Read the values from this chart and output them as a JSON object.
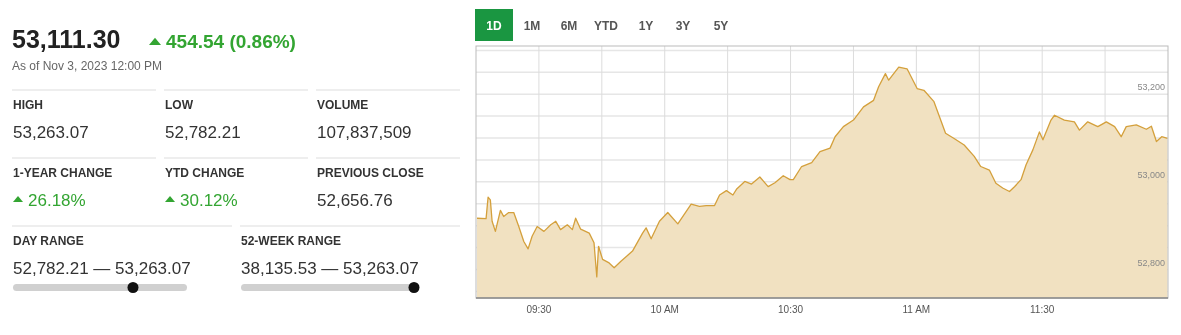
{
  "chart_data": [
    {
      "type": "other",
      "title": "53,111.30",
      "subtitle": "As of Nov 3, 2023 12:00 PM",
      "annotations": [
        "454.54 (0.86%)",
        "HIGH",
        "53,263.07",
        "LOW",
        "52,782.21",
        "VOLUME",
        "107,837,509",
        "1-YEAR CHANGE",
        "26.18%",
        "YTD CHANGE",
        "30.12%",
        "PREVIOUS CLOSE",
        "52,656.76",
        "DAY RANGE",
        "52,782.21 — 53,263.07",
        "52-WEEK RANGE",
        "38,135.53 — 53,263.07"
      ]
    },
    {
      "type": "area",
      "annotations": [
        "1D",
        "1M",
        "6M",
        "YTD",
        "1Y",
        "3Y",
        "5Y"
      ],
      "series": [
        {
          "color": "#d4a03c",
          "x": [
            9.254,
            9.29,
            9.298,
            9.307,
            9.314,
            9.327,
            9.347,
            9.36,
            9.38,
            9.4,
            9.42,
            9.44,
            9.457,
            9.473,
            9.493,
            9.52,
            9.547,
            9.567,
            9.586,
            9.613,
            9.633,
            9.646,
            9.666,
            9.7,
            9.719,
            9.73,
            9.737,
            9.753,
            9.779,
            9.799,
            9.826,
            9.872,
            9.912,
            9.926,
            9.946,
            9.979,
            10.012,
            10.052,
            10.105,
            10.138,
            10.165,
            10.198,
            10.218,
            10.245,
            10.271,
            10.285,
            10.318,
            10.345,
            10.378,
            10.411,
            10.438,
            10.471,
            10.498,
            10.511,
            10.544,
            10.584,
            10.617,
            10.657,
            10.677,
            10.71,
            10.75,
            10.79,
            10.83,
            10.85,
            10.877,
            10.89,
            10.93,
            10.963,
            11.003,
            11.03,
            11.07,
            11.116,
            11.15,
            11.19,
            11.23,
            11.256,
            11.29,
            11.316,
            11.343,
            11.37,
            11.39,
            11.416,
            11.436,
            11.463,
            11.489,
            11.503,
            11.535,
            11.549,
            11.588,
            11.628,
            11.648,
            11.681,
            11.721,
            11.755,
            11.788,
            11.814,
            11.834,
            11.874,
            11.914,
            11.934,
            11.954,
            11.975,
            11.998
          ],
          "values": [
            52917,
            52916,
            52965,
            52959,
            52910,
            52887,
            52935,
            52921,
            52930,
            52930,
            52898,
            52864,
            52847,
            52876,
            52898,
            52887,
            52902,
            52910,
            52891,
            52902,
            52891,
            52917,
            52892,
            52883,
            52861,
            52783,
            52853,
            52823,
            52815,
            52804,
            52819,
            52842,
            52883,
            52895,
            52870,
            52910,
            52930,
            52904,
            52949,
            52944,
            52946,
            52946,
            52970,
            52980,
            52970,
            52983,
            53001,
            52995,
            53011,
            52989,
            52998,
            53014,
            53005,
            53005,
            53035,
            53044,
            53069,
            53077,
            53103,
            53126,
            53141,
            53171,
            53186,
            53217,
            53247,
            53232,
            53262,
            53258,
            53213,
            53209,
            53183,
            53111,
            53099,
            53084,
            53058,
            53035,
            53027,
            52997,
            52986,
            52978,
            52989,
            53005,
            53039,
            53073,
            53114,
            53096,
            53141,
            53152,
            53141,
            53137,
            53118,
            53137,
            53126,
            53137,
            53126,
            53103,
            53126,
            53130,
            53120,
            53127,
            53092,
            53103,
            53099
          ]
        }
      ],
      "xlim": [
        9.25,
        12.0
      ],
      "xticks": [
        {
          "value": 9.5,
          "label": "09:30"
        },
        {
          "value": 9.75,
          "label": null
        },
        {
          "value": 10,
          "label": "10 AM"
        },
        {
          "value": 10.25,
          "label": null
        },
        {
          "value": 10.5,
          "label": "10:30"
        },
        {
          "value": 10.75,
          "label": null
        },
        {
          "value": 11,
          "label": "11 AM"
        },
        {
          "value": 11.25,
          "label": null
        },
        {
          "value": 11.5,
          "label": "11:30"
        },
        {
          "value": 11.75,
          "label": null
        }
      ],
      "ylim": [
        52735,
        53310
      ],
      "yticks": [
        {
          "value": 52750,
          "label": null
        },
        {
          "value": 52800,
          "label": "52,800"
        },
        {
          "value": 52850,
          "label": null
        },
        {
          "value": 52900,
          "label": null
        },
        {
          "value": 52950,
          "label": null
        },
        {
          "value": 53000,
          "label": "53,000"
        },
        {
          "value": 53050,
          "label": null
        },
        {
          "value": 53100,
          "label": null
        },
        {
          "value": 53150,
          "label": null
        },
        {
          "value": 53200,
          "label": "53,200"
        },
        {
          "value": 53250,
          "label": null
        },
        {
          "value": 53300,
          "label": null
        }
      ],
      "grid": true,
      "line_style": "solid"
    }
  ]
}
